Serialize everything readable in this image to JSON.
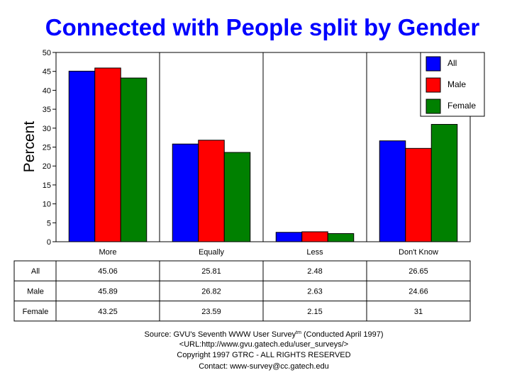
{
  "chart_data": {
    "type": "bar",
    "title": "Connected with People split by Gender",
    "ylabel": "Percent",
    "xlabel": "",
    "ylim": [
      0,
      50
    ],
    "yticks": [
      0,
      5,
      10,
      15,
      20,
      25,
      30,
      35,
      40,
      45,
      50
    ],
    "categories": [
      "More",
      "Equally",
      "Less",
      "Don't Know"
    ],
    "series": [
      {
        "name": "All",
        "color": "#0000ff",
        "values": [
          45.06,
          25.81,
          2.48,
          26.65
        ]
      },
      {
        "name": "Male",
        "color": "#ff0000",
        "values": [
          45.89,
          26.82,
          2.63,
          24.66
        ]
      },
      {
        "name": "Female",
        "color": "#008000",
        "values": [
          43.25,
          23.59,
          2.15,
          31
        ]
      }
    ],
    "legend_position": "top-right",
    "grid": "vertical category separators",
    "table": {
      "rows": [
        {
          "label": "All",
          "cells": [
            "45.06",
            "25.81",
            "2.48",
            "26.65"
          ]
        },
        {
          "label": "Male",
          "cells": [
            "45.89",
            "26.82",
            "2.63",
            "24.66"
          ]
        },
        {
          "label": "Female",
          "cells": [
            "43.25",
            "23.59",
            "2.15",
            "31"
          ]
        }
      ]
    }
  },
  "footer": {
    "source_prefix": "Source: GVU's Seventh WWW User Survey",
    "source_sup": "tm",
    "source_suffix": " (Conducted April 1997)",
    "url": "<URL:http://www.gvu.gatech.edu/user_surveys/>",
    "copyright": "Copyright 1997 GTRC - ALL RIGHTS RESERVED",
    "contact": "Contact: www-survey@cc.gatech.edu"
  }
}
